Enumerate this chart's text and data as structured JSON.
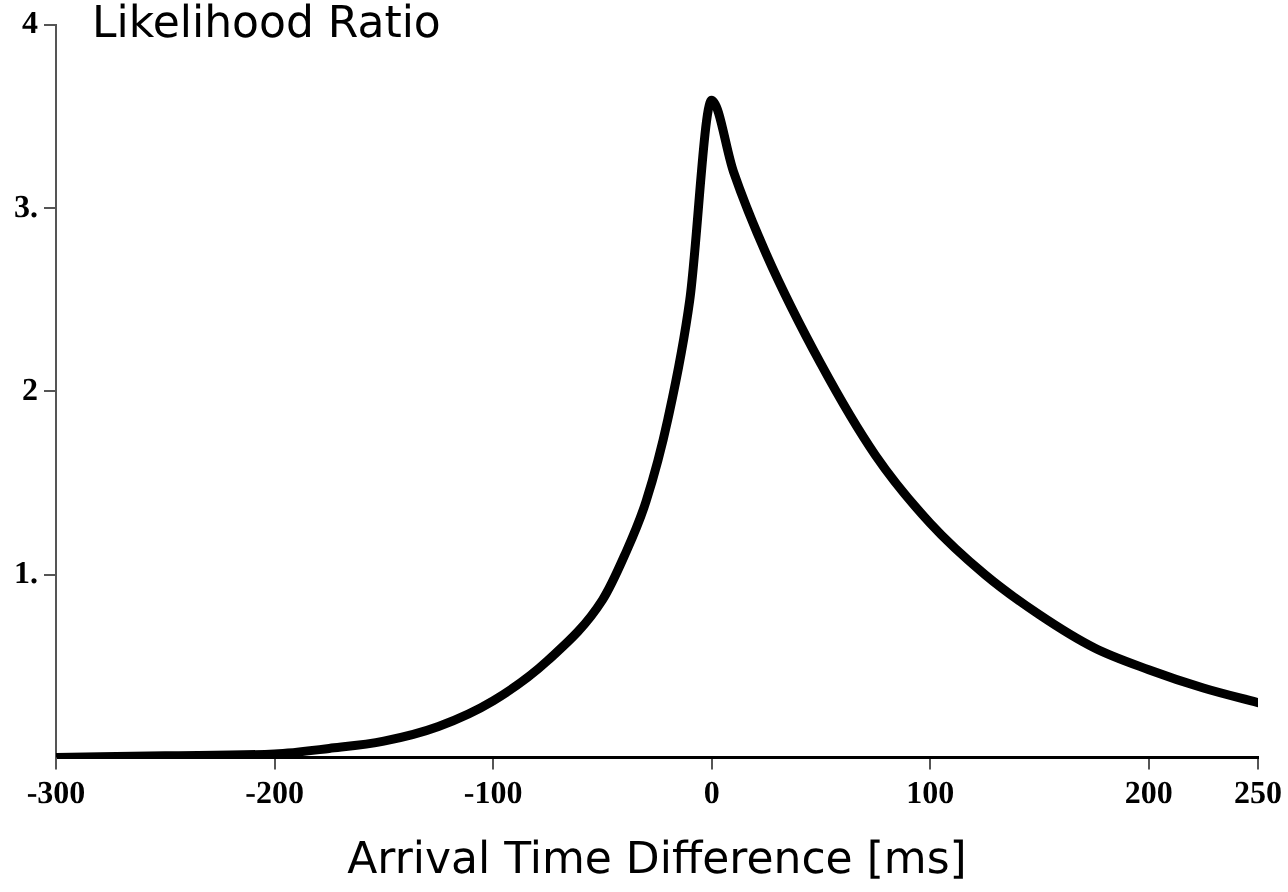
{
  "chart_data": {
    "type": "line",
    "ylabel": "Likelihood Ratio",
    "xlabel": "Arrival Time Difference [ms]",
    "x": [
      -300,
      -250,
      -200,
      -175,
      -150,
      -125,
      -100,
      -75,
      -50,
      -40,
      -30,
      -20,
      -10,
      0,
      10,
      25,
      50,
      75,
      100,
      125,
      150,
      175,
      200,
      225,
      250
    ],
    "series": [
      {
        "color": "#000000",
        "values": [
          0,
          0.01,
          0.02,
          0.05,
          0.09,
          0.17,
          0.31,
          0.53,
          0.86,
          1.1,
          1.4,
          1.85,
          2.5,
          3.59,
          3.2,
          2.75,
          2.15,
          1.65,
          1.28,
          1.0,
          0.78,
          0.6,
          0.48,
          0.38,
          0.3
        ]
      }
    ],
    "xlim": [
      -300,
      250
    ],
    "xticks": [
      -300,
      -200,
      -100,
      0,
      100,
      200,
      250
    ],
    "ylim": [
      0,
      4
    ],
    "yticks": [
      {
        "value": 1,
        "label": "1."
      },
      2,
      {
        "value": 3,
        "label": "3."
      },
      4
    ],
    "grid": false,
    "legend": false,
    "marker": "none",
    "line_style": "solid"
  }
}
